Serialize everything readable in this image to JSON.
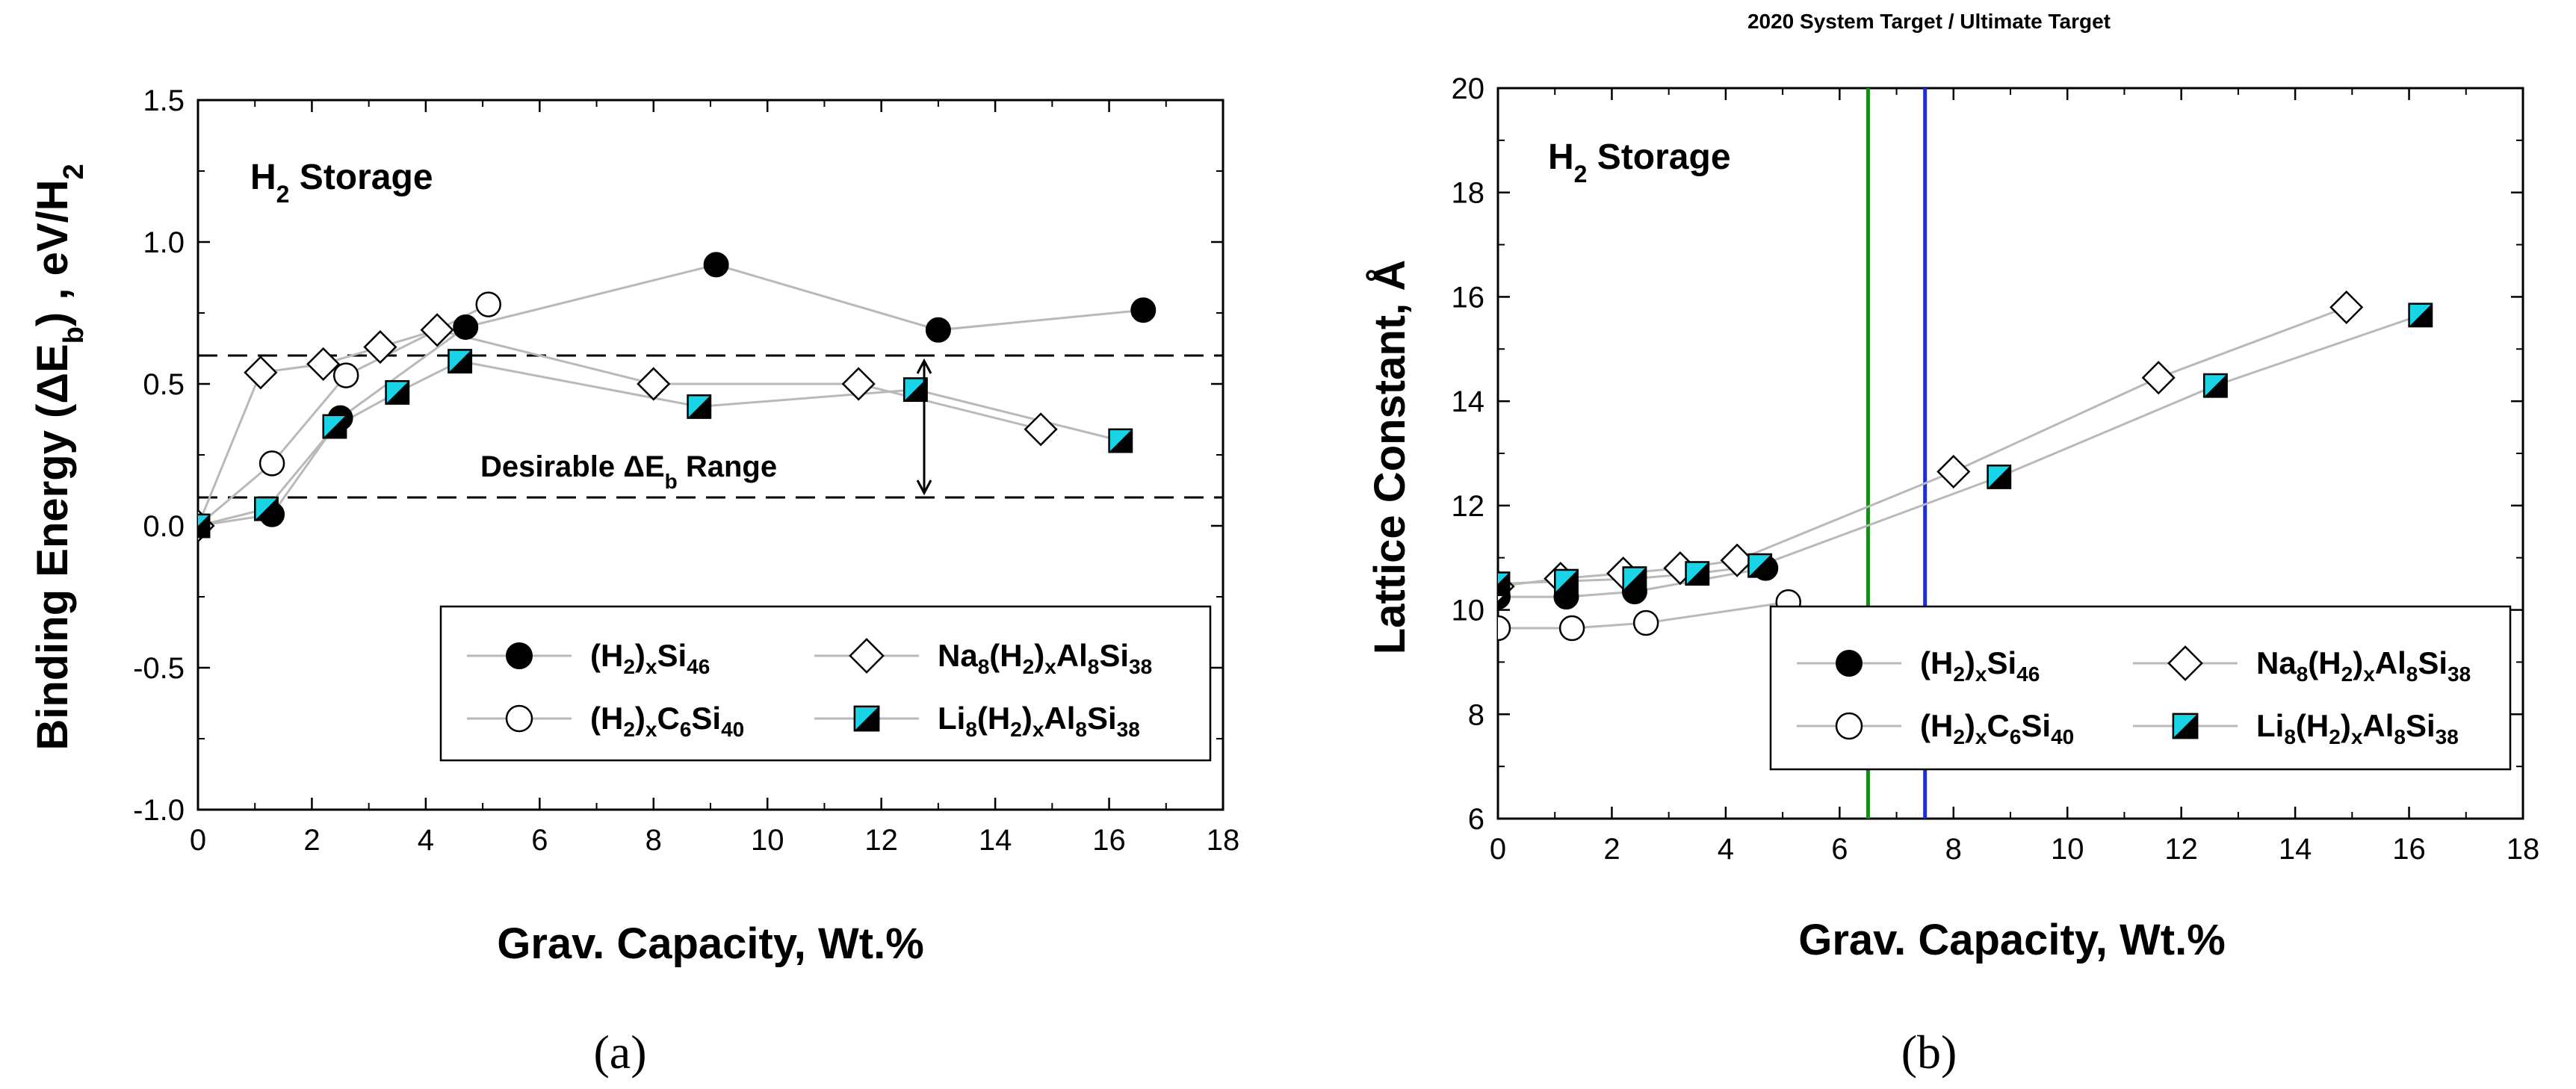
{
  "figure_labels": [
    "(a)",
    "(b)"
  ],
  "chart_data": [
    {
      "type": "scatter",
      "panel": "(a)",
      "title": "",
      "annotation_storage": {
        "main": "H",
        "sub": "2",
        "rest": " Storage"
      },
      "xlabel": "Grav. Capacity, Wt.%",
      "ylabel_parts": {
        "a": "Binding Energy (ΔE",
        "sub": "b",
        "b": ") , eV/H",
        "sub2": "2"
      },
      "xlim": [
        0,
        18
      ],
      "ylim": [
        -1.0,
        1.5
      ],
      "xticks": [
        "0",
        "2",
        "4",
        "6",
        "8",
        "10",
        "12",
        "14",
        "16",
        "18"
      ],
      "yticks": [
        "-1.0",
        "-0.5",
        "0.0",
        "0.5",
        "1.0",
        "1.5"
      ],
      "reference_lines": [
        0.6,
        0.1
      ],
      "range_annotation": {
        "main": "Desirable ΔE",
        "sub": "b",
        "rest": " Range"
      },
      "series": [
        {
          "name": "(H2)xSi46",
          "label_parts": [
            "(H",
            "2",
            ")",
            "x",
            "Si",
            "46"
          ],
          "marker": "filled-circle",
          "x": [
            0,
            1.3,
            2.5,
            4.7,
            9.1,
            13.0,
            16.6
          ],
          "y": [
            0.0,
            0.04,
            0.38,
            0.7,
            0.92,
            0.69,
            0.76
          ]
        },
        {
          "name": "(H2)xC6Si40",
          "label_parts": [
            "(H",
            "2",
            ")",
            "x",
            "C",
            "6",
            "Si",
            "40"
          ],
          "marker": "open-circle",
          "x": [
            0,
            1.3,
            2.6,
            5.1
          ],
          "y": [
            0.0,
            0.22,
            0.53,
            0.78
          ]
        },
        {
          "name": "Na8(H2)xAl8Si38",
          "label_parts": [
            "Na",
            "8",
            "(H",
            "2",
            ")",
            "x",
            "Al",
            "8",
            "Si",
            "38"
          ],
          "marker": "open-diamond",
          "x": [
            0,
            1.1,
            2.2,
            3.2,
            4.2,
            8.0,
            11.6,
            14.8
          ],
          "y": [
            0.0,
            0.54,
            0.57,
            0.63,
            0.69,
            0.5,
            0.5,
            0.34
          ]
        },
        {
          "name": "Li8(H2)xAl8Si38",
          "label_parts": [
            "Li",
            "8",
            "(H",
            "2",
            ")",
            "x",
            "Al",
            "8",
            "Si",
            "38"
          ],
          "marker": "half-square",
          "x": [
            0,
            1.2,
            2.4,
            3.5,
            4.6,
            8.8,
            12.6,
            16.2
          ],
          "y": [
            0.0,
            0.06,
            0.35,
            0.47,
            0.58,
            0.42,
            0.48,
            0.3
          ]
        }
      ]
    },
    {
      "type": "scatter",
      "panel": "(b)",
      "title": "2020 System Target / Ultimate Target",
      "annotation_storage": {
        "main": "H",
        "sub": "2",
        "rest": " Storage"
      },
      "xlabel": "Grav. Capacity, Wt.%",
      "ylabel": "Lattice Constant, Å",
      "xlim": [
        0,
        18
      ],
      "ylim": [
        6,
        20
      ],
      "xticks": [
        "0",
        "2",
        "4",
        "6",
        "8",
        "10",
        "12",
        "14",
        "16",
        "18"
      ],
      "yticks": [
        "6",
        "8",
        "10",
        "12",
        "14",
        "16",
        "18",
        "20"
      ],
      "vertical_lines": [
        {
          "x": 6.5,
          "color": "#1a8a1a"
        },
        {
          "x": 7.5,
          "color": "#1f2fd6"
        }
      ],
      "series": [
        {
          "name": "(H2)xSi46",
          "label_parts": [
            "(H",
            "2",
            ")",
            "x",
            "Si",
            "46"
          ],
          "marker": "filled-circle",
          "x": [
            0,
            1.2,
            2.4,
            4.7
          ],
          "y": [
            10.25,
            10.25,
            10.35,
            10.8
          ]
        },
        {
          "name": "(H2)xC6Si40",
          "label_parts": [
            "(H",
            "2",
            ")",
            "x",
            "C",
            "6",
            "Si",
            "40"
          ],
          "marker": "open-circle",
          "x": [
            0,
            1.3,
            2.6,
            5.1
          ],
          "y": [
            9.65,
            9.65,
            9.75,
            10.15
          ]
        },
        {
          "name": "Na8(H2)xAl8Si38",
          "label_parts": [
            "Na",
            "8",
            "(H",
            "2",
            ")",
            "x",
            "Al",
            "8",
            "Si",
            "38"
          ],
          "marker": "open-diamond",
          "x": [
            0,
            1.1,
            2.2,
            3.2,
            4.2,
            8.0,
            11.6,
            14.9
          ],
          "y": [
            10.45,
            10.6,
            10.7,
            10.8,
            10.95,
            12.65,
            14.45,
            15.8
          ]
        },
        {
          "name": "Li8(H2)xAl8Si38",
          "label_parts": [
            "Li",
            "8",
            "(H",
            "2",
            ")",
            "x",
            "Al",
            "8",
            "Si",
            "38"
          ],
          "marker": "half-square",
          "x": [
            0,
            1.2,
            2.4,
            3.5,
            4.6,
            8.8,
            12.6,
            16.2
          ],
          "y": [
            10.5,
            10.55,
            10.6,
            10.7,
            10.85,
            12.55,
            14.3,
            15.65
          ]
        }
      ]
    }
  ],
  "colors": {
    "series_line": "#b9b9b9",
    "marker_fill": "#000000",
    "accent_cyan": "#19d3e6",
    "dash": "#000000"
  }
}
